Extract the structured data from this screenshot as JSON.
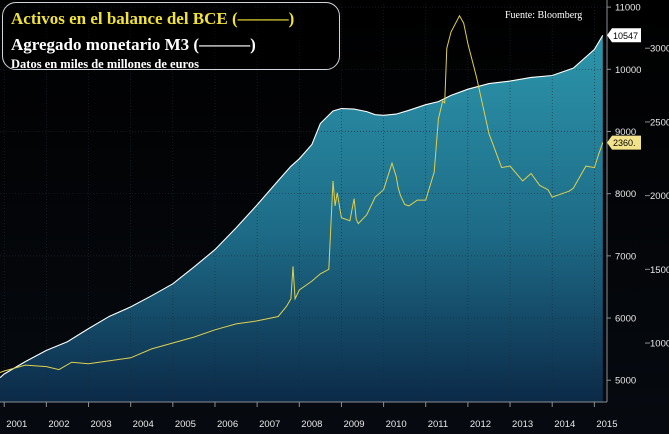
{
  "chart_data": {
    "type": "line",
    "title_lines": [
      "Activos en el balance del BCE (———)",
      "Agregado monetario M3 (———)",
      "Datos en miles de millones de euros"
    ],
    "source": "Fuente: Bloomberg",
    "x_ticks": [
      "2001",
      "2002",
      "2003",
      "2004",
      "2005",
      "2006",
      "2007",
      "2008",
      "2009",
      "2010",
      "2011",
      "2012",
      "2013",
      "2014",
      "2015"
    ],
    "xlim": [
      2000.9,
      2015.3
    ],
    "y_left": {
      "ticks": [
        5000,
        6000,
        7000,
        8000,
        9000,
        10000,
        11000
      ],
      "ylim": [
        4650,
        11050
      ]
    },
    "y_right": {
      "ticks": [
        1000,
        1500,
        2000,
        2500,
        3000
      ],
      "ylim": [
        600,
        3300
      ]
    },
    "grid": true,
    "series": [
      {
        "name": "Agregado monetario M3",
        "axis": "left",
        "color": "#ffffff",
        "fill": "#2a8ea3",
        "last_value_label": "10547",
        "x": [
          2000.9,
          2001.0,
          2001.5,
          2002.0,
          2002.5,
          2003.0,
          2003.5,
          2004.0,
          2004.5,
          2005.0,
          2005.5,
          2006.0,
          2006.5,
          2007.0,
          2007.5,
          2007.8,
          2008.0,
          2008.3,
          2008.5,
          2008.8,
          2009.0,
          2009.3,
          2009.6,
          2009.8,
          2010.0,
          2010.3,
          2010.6,
          2011.0,
          2011.3,
          2011.6,
          2012.0,
          2012.5,
          2013.0,
          2013.5,
          2014.0,
          2014.5,
          2015.0,
          2015.2
        ],
        "y": [
          5040,
          5100,
          5300,
          5480,
          5620,
          5830,
          6030,
          6180,
          6360,
          6550,
          6820,
          7100,
          7450,
          7820,
          8210,
          8440,
          8560,
          8790,
          9130,
          9330,
          9370,
          9360,
          9320,
          9270,
          9260,
          9280,
          9340,
          9430,
          9480,
          9580,
          9680,
          9770,
          9810,
          9870,
          9900,
          10020,
          10320,
          10547
        ]
      },
      {
        "name": "Activos en el balance del BCE",
        "axis": "right",
        "color": "#e0d050",
        "last_value_label": "2360.",
        "x": [
          2000.9,
          2001.0,
          2001.5,
          2002.0,
          2002.3,
          2002.6,
          2003.0,
          2003.5,
          2004.0,
          2004.5,
          2005.0,
          2005.5,
          2006.0,
          2006.5,
          2007.0,
          2007.5,
          2007.7,
          2007.8,
          2007.85,
          2007.9,
          2008.0,
          2008.3,
          2008.5,
          2008.7,
          2008.8,
          2008.85,
          2008.9,
          2009.0,
          2009.2,
          2009.3,
          2009.35,
          2009.4,
          2009.6,
          2009.8,
          2010.0,
          2010.2,
          2010.3,
          2010.35,
          2010.4,
          2010.5,
          2010.6,
          2010.8,
          2011.0,
          2011.2,
          2011.3,
          2011.4,
          2011.45,
          2011.5,
          2011.6,
          2011.8,
          2011.9,
          2012.0,
          2012.2,
          2012.5,
          2012.8,
          2013.0,
          2013.3,
          2013.5,
          2013.7,
          2013.9,
          2014.0,
          2014.2,
          2014.4,
          2014.5,
          2014.6,
          2014.8,
          2015.0,
          2015.1,
          2015.2
        ],
        "y": [
          800,
          810,
          850,
          840,
          820,
          870,
          860,
          880,
          900,
          960,
          1000,
          1040,
          1090,
          1130,
          1150,
          1180,
          1250,
          1300,
          1520,
          1300,
          1360,
          1420,
          1470,
          1500,
          2100,
          1930,
          2020,
          1850,
          1830,
          1980,
          1840,
          1810,
          1870,
          1990,
          2040,
          2220,
          2130,
          2050,
          2000,
          1940,
          1930,
          1970,
          1970,
          2160,
          2520,
          2640,
          2630,
          3000,
          3110,
          3220,
          3170,
          3030,
          2810,
          2420,
          2190,
          2200,
          2100,
          2150,
          2070,
          2040,
          1990,
          2010,
          2030,
          2050,
          2100,
          2200,
          2190,
          2280,
          2360
        ]
      }
    ]
  }
}
